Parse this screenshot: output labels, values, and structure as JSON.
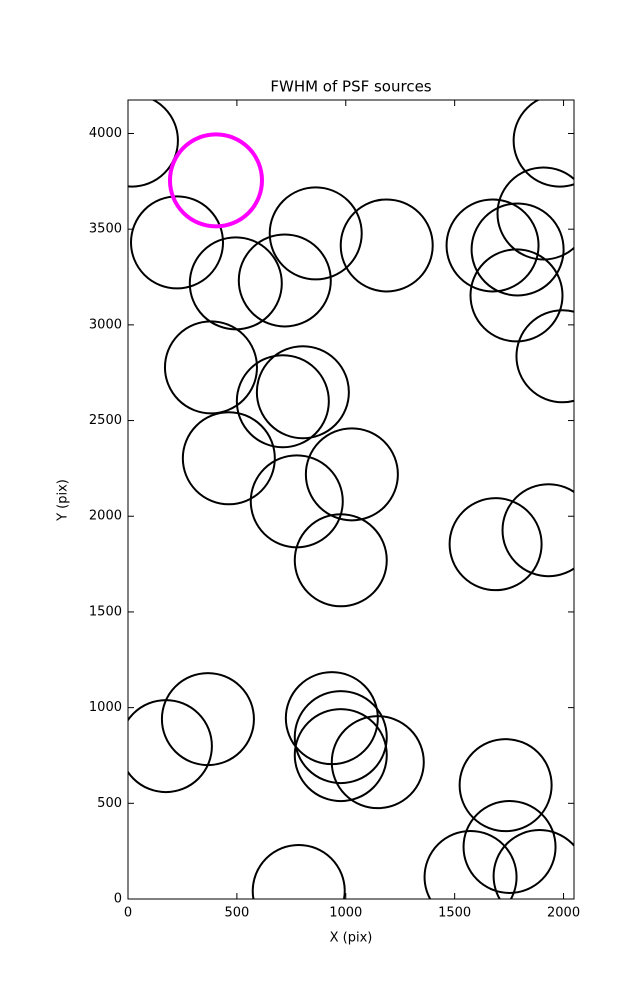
{
  "chart_data": {
    "type": "scatter",
    "title": "FWHM of PSF sources",
    "x_label": "X (pix)",
    "y_label": "Y (pix)",
    "xlim": [
      0,
      2048
    ],
    "ylim": [
      0,
      4175
    ],
    "xticks": [
      0,
      500,
      1000,
      1500,
      2000
    ],
    "yticks": [
      0,
      500,
      1000,
      1500,
      2000,
      2500,
      3000,
      3500,
      4000
    ],
    "series": [
      {
        "color": "#000000",
        "x": [
          18,
          225,
          495,
          720,
          862,
          1188,
          1674,
          1789,
          1908,
          1784,
          1995,
          1982,
          381,
          711,
          803,
          463,
          775,
          1028,
          977,
          1688,
          1931,
          174,
          367,
          936,
          977,
          977,
          1147,
          1734,
          1752,
          1573,
          1890,
          784
        ],
        "values": [
          3963,
          3431,
          3217,
          3232,
          3478,
          3415,
          3415,
          3394,
          3582,
          3154,
          2836,
          3963,
          2778,
          2601,
          2648,
          2303,
          2078,
          2219,
          1770,
          1854,
          1927,
          799,
          940,
          945,
          846,
          752,
          715,
          595,
          272,
          115,
          120,
          42
        ]
      },
      {
        "color": "#ff00ff",
        "x": [
          404
        ],
        "values": [
          3755
        ]
      }
    ]
  }
}
